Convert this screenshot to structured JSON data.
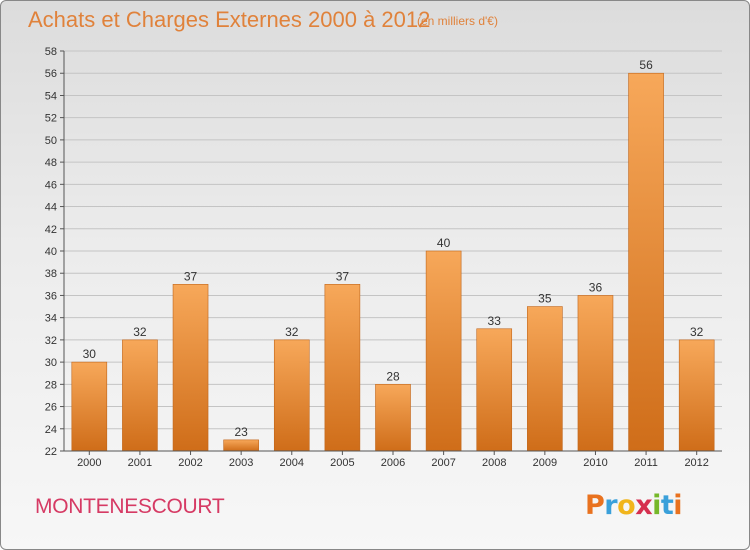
{
  "title": "Achats et Charges Externes 2000 à 2012",
  "subtitle": "(en milliers d'€)",
  "location": "MONTENESCOURT",
  "logo": {
    "letters": [
      "P",
      "r",
      "o",
      "x",
      "i",
      "t",
      "i"
    ],
    "colors": [
      "#e9721f",
      "#3aa0da",
      "#f1b51c",
      "#d6304f",
      "#76b82a",
      "#3aa0da",
      "#e9721f"
    ]
  },
  "colors": {
    "bar_top": "#f7a85a",
    "bar_bottom": "#cf6d19",
    "title": "#e0823b",
    "location": "#d63a64"
  },
  "chart_data": {
    "type": "bar",
    "categories": [
      "2000",
      "2001",
      "2002",
      "2003",
      "2004",
      "2005",
      "2006",
      "2007",
      "2008",
      "2009",
      "2010",
      "2011",
      "2012"
    ],
    "values": [
      30,
      32,
      37,
      23,
      32,
      37,
      28,
      40,
      33,
      35,
      36,
      56,
      32
    ],
    "ylim": [
      22,
      58
    ],
    "yticks": [
      22,
      24,
      26,
      28,
      30,
      32,
      34,
      36,
      38,
      40,
      42,
      44,
      46,
      48,
      50,
      52,
      54,
      56,
      58
    ],
    "grid": true,
    "data_labels": true
  }
}
